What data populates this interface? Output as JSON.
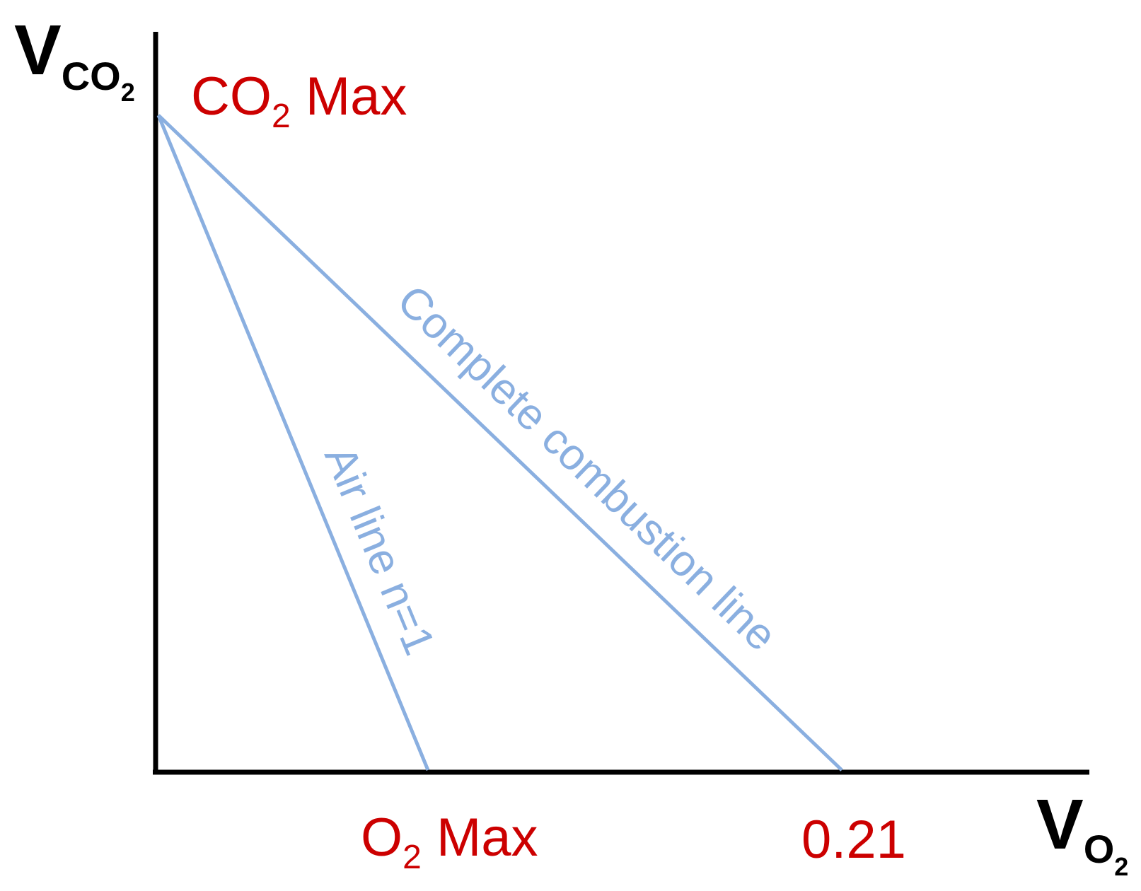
{
  "colors": {
    "axis": "#000000",
    "line": "#8aafe0",
    "highlight": "#cc0000"
  },
  "axes": {
    "y": {
      "main": "V",
      "sub": "CO",
      "subsub": "2"
    },
    "x": {
      "main": "V",
      "sub": "O",
      "subsub": "2"
    }
  },
  "labels": {
    "co2_max": {
      "prefix": "CO",
      "sub": "2",
      "suffix": " Max"
    },
    "o2_max": {
      "prefix": "O",
      "sub": "2",
      "suffix": " Max"
    },
    "x_value": "0.21"
  },
  "lines": {
    "complete_combustion": {
      "label": "Complete combustion line"
    },
    "air_line": {
      "label": "Air line n=1"
    }
  }
}
